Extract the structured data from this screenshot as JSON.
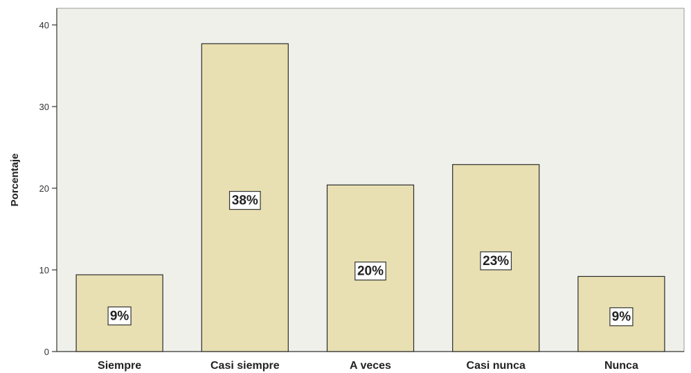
{
  "chart_data": {
    "type": "bar",
    "categories": [
      "Siempre",
      "Casi siempre",
      "A veces",
      "Casi nunca",
      "Nunca"
    ],
    "values": [
      9.4,
      37.7,
      20.4,
      22.9,
      9.2
    ],
    "data_labels": [
      "9%",
      "38%",
      "20%",
      "23%",
      "9%"
    ],
    "title": "",
    "xlabel": "",
    "ylabel": "Porcentaje",
    "ylim": [
      0,
      40
    ],
    "yticks": [
      "0",
      "10",
      "20",
      "30",
      "40"
    ],
    "grid": false,
    "legend": "none"
  },
  "colors": {
    "plot_background": "#f0f0eb",
    "bar_fill": "#e8e0b2",
    "bar_stroke": "#2a2a2a",
    "axis": "#333333",
    "label_box": "#ffffff"
  }
}
